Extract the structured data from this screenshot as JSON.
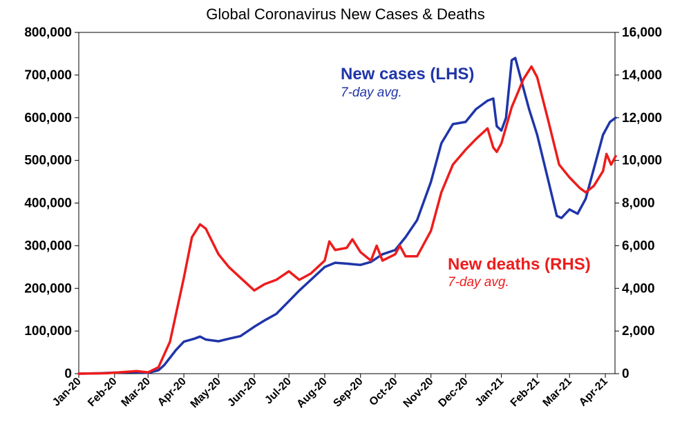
{
  "chart_data": {
    "type": "line",
    "title": "Global Coronavirus New Cases & Deaths",
    "x_ticks": [
      "Jan-20",
      "Feb-20",
      "Mar-20",
      "Apr-20",
      "May-20",
      "Jun-20",
      "Jul-20",
      "Aug-20",
      "Sep-20",
      "Oct-20",
      "Nov-20",
      "Dec-20",
      "Jan-21",
      "Feb-21",
      "Mar-21",
      "Apr-21"
    ],
    "y_left": {
      "ylim": [
        0,
        800000
      ],
      "ticks": [
        "0",
        "100,000",
        "200,000",
        "300,000",
        "400,000",
        "500,000",
        "600,000",
        "700,000",
        "800,000"
      ]
    },
    "y_right": {
      "ylim": [
        0,
        16000
      ],
      "ticks": [
        "0",
        "2,000",
        "4,000",
        "6,000",
        "8,000",
        "10,000",
        "12,000",
        "14,000",
        "16,000"
      ]
    },
    "grid": false,
    "series": [
      {
        "name": "New cases (LHS)",
        "subtitle": "7-day avg.",
        "axis": "left",
        "color": "#1f35a8",
        "points": [
          [
            "2020-01-01",
            0
          ],
          [
            "2020-01-20",
            1000
          ],
          [
            "2020-02-01",
            2500
          ],
          [
            "2020-02-15",
            3500
          ],
          [
            "2020-03-01",
            2000
          ],
          [
            "2020-03-10",
            8000
          ],
          [
            "2020-03-15",
            20000
          ],
          [
            "2020-03-25",
            55000
          ],
          [
            "2020-04-01",
            75000
          ],
          [
            "2020-04-10",
            82000
          ],
          [
            "2020-04-15",
            87000
          ],
          [
            "2020-04-20",
            80000
          ],
          [
            "2020-05-01",
            76000
          ],
          [
            "2020-05-10",
            82000
          ],
          [
            "2020-05-20",
            88000
          ],
          [
            "2020-06-01",
            110000
          ],
          [
            "2020-06-10",
            125000
          ],
          [
            "2020-06-20",
            140000
          ],
          [
            "2020-07-01",
            170000
          ],
          [
            "2020-07-10",
            195000
          ],
          [
            "2020-07-20",
            220000
          ],
          [
            "2020-08-01",
            250000
          ],
          [
            "2020-08-10",
            260000
          ],
          [
            "2020-08-20",
            258000
          ],
          [
            "2020-09-01",
            255000
          ],
          [
            "2020-09-10",
            262000
          ],
          [
            "2020-09-20",
            280000
          ],
          [
            "2020-10-01",
            290000
          ],
          [
            "2020-10-10",
            320000
          ],
          [
            "2020-10-20",
            360000
          ],
          [
            "2020-11-01",
            450000
          ],
          [
            "2020-11-10",
            540000
          ],
          [
            "2020-11-20",
            585000
          ],
          [
            "2020-12-01",
            590000
          ],
          [
            "2020-12-10",
            620000
          ],
          [
            "2020-12-20",
            640000
          ],
          [
            "2020-12-25",
            645000
          ],
          [
            "2020-12-28",
            580000
          ],
          [
            "2021-01-01",
            570000
          ],
          [
            "2021-01-05",
            600000
          ],
          [
            "2021-01-10",
            735000
          ],
          [
            "2021-01-13",
            740000
          ],
          [
            "2021-01-18",
            690000
          ],
          [
            "2021-01-25",
            620000
          ],
          [
            "2021-02-01",
            560000
          ],
          [
            "2021-02-10",
            460000
          ],
          [
            "2021-02-18",
            370000
          ],
          [
            "2021-02-22",
            365000
          ],
          [
            "2021-03-01",
            385000
          ],
          [
            "2021-03-08",
            375000
          ],
          [
            "2021-03-15",
            410000
          ],
          [
            "2021-03-22",
            480000
          ],
          [
            "2021-03-30",
            560000
          ],
          [
            "2021-04-05",
            590000
          ],
          [
            "2021-04-10",
            600000
          ]
        ]
      },
      {
        "name": "New deaths (RHS)",
        "subtitle": "7-day avg.",
        "axis": "right",
        "color": "#ee1c1c",
        "points": [
          [
            "2020-01-01",
            0
          ],
          [
            "2020-01-25",
            20
          ],
          [
            "2020-02-05",
            60
          ],
          [
            "2020-02-20",
            120
          ],
          [
            "2020-03-01",
            60
          ],
          [
            "2020-03-10",
            300
          ],
          [
            "2020-03-20",
            1500
          ],
          [
            "2020-04-01",
            4500
          ],
          [
            "2020-04-08",
            6400
          ],
          [
            "2020-04-15",
            7000
          ],
          [
            "2020-04-20",
            6800
          ],
          [
            "2020-05-01",
            5600
          ],
          [
            "2020-05-10",
            5000
          ],
          [
            "2020-05-20",
            4500
          ],
          [
            "2020-06-01",
            3900
          ],
          [
            "2020-06-10",
            4200
          ],
          [
            "2020-06-20",
            4400
          ],
          [
            "2020-07-01",
            4800
          ],
          [
            "2020-07-10",
            4400
          ],
          [
            "2020-07-20",
            4700
          ],
          [
            "2020-08-01",
            5300
          ],
          [
            "2020-08-05",
            6200
          ],
          [
            "2020-08-10",
            5800
          ],
          [
            "2020-08-20",
            5900
          ],
          [
            "2020-08-25",
            6300
          ],
          [
            "2020-09-01",
            5700
          ],
          [
            "2020-09-10",
            5300
          ],
          [
            "2020-09-15",
            6000
          ],
          [
            "2020-09-20",
            5300
          ],
          [
            "2020-10-01",
            5600
          ],
          [
            "2020-10-05",
            6000
          ],
          [
            "2020-10-10",
            5500
          ],
          [
            "2020-10-20",
            5500
          ],
          [
            "2020-11-01",
            6700
          ],
          [
            "2020-11-10",
            8500
          ],
          [
            "2020-11-20",
            9800
          ],
          [
            "2020-12-01",
            10500
          ],
          [
            "2020-12-10",
            11000
          ],
          [
            "2020-12-20",
            11500
          ],
          [
            "2020-12-25",
            10600
          ],
          [
            "2020-12-28",
            10400
          ],
          [
            "2021-01-01",
            10800
          ],
          [
            "2021-01-10",
            12500
          ],
          [
            "2021-01-20",
            13800
          ],
          [
            "2021-01-27",
            14400
          ],
          [
            "2021-02-01",
            13900
          ],
          [
            "2021-02-10",
            12000
          ],
          [
            "2021-02-20",
            9800
          ],
          [
            "2021-03-01",
            9200
          ],
          [
            "2021-03-10",
            8700
          ],
          [
            "2021-03-15",
            8500
          ],
          [
            "2021-03-22",
            8800
          ],
          [
            "2021-03-30",
            9500
          ],
          [
            "2021-04-02",
            10300
          ],
          [
            "2021-04-06",
            9800
          ],
          [
            "2021-04-10",
            10200
          ]
        ]
      }
    ]
  }
}
